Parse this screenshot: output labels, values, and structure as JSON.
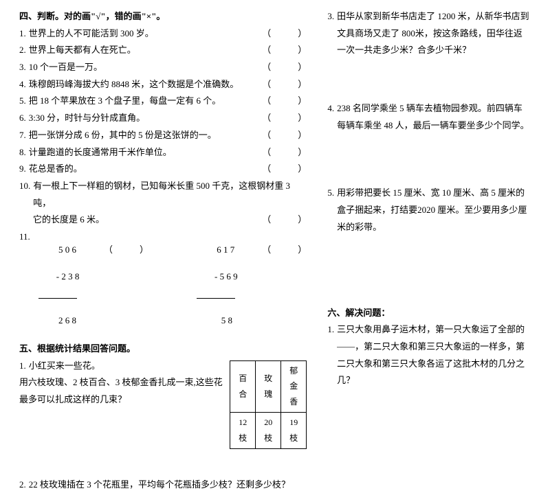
{
  "left": {
    "sec4_title": "四、判断。对的画\"√\"，错的画\"×\"。",
    "bracket": "（　　　）",
    "items": [
      {
        "n": "1.",
        "t": "世界上的人不可能活到 300 岁。"
      },
      {
        "n": "2.",
        "t": "世界上每天都有人在死亡。"
      },
      {
        "n": "3.",
        "t": "10 个一百是一万。"
      },
      {
        "n": "4.",
        "t": "珠穆朗玛峰海拔大约 8848 米，这个数据是个准确数。"
      },
      {
        "n": "5.",
        "t": "把 18 个苹果放在 3 个盘子里，每盘一定有 6 个。"
      },
      {
        "n": "6.",
        "t": "3:30 分，时针与分针成直角。"
      },
      {
        "n": "7.",
        "t": "把一张饼分成 6 份，其中的 5 份是这张饼的一。"
      },
      {
        "n": "8.",
        "t": "计量跑道的长度通常用千米作单位。"
      },
      {
        "n": "9.",
        "t": "花总是香的。"
      }
    ],
    "item10_n": "10.",
    "item10_t": "有一根上下一样粗的钢材，已知每米长重 500 千克，这根钢材重 3 吨，",
    "item10_cont": "它的长度是 6 米。",
    "item11_n": "11.",
    "calc_left": {
      "l1": " 5 0 6",
      "l2": "- 2 3 8",
      "l3": " 2 6 8"
    },
    "calc_right": {
      "l1": " 6 1 7",
      "l2": "- 5 6 9",
      "l3": "   5 8"
    },
    "sec5_title": "五、根据统计结果回答问题。",
    "q5_1_n": "1.",
    "q5_1_t": "小红买来一些花。",
    "q5_1_body": "用六枝玫瑰、2 枝百合、3 枝郁金香扎成一束,这些花最多可以扎成这样的几束？",
    "table": {
      "h1": "百合",
      "h2": "玫瑰",
      "h3": "郁金香",
      "r1": "12 枝",
      "r2": "20 枝",
      "r3": "19 枝"
    },
    "q5_2_n": "2.",
    "q5_2_t": "22 枝玫瑰插在 3 个花瓶里，平均每个花瓶插多少枝？还剩多少枝？"
  },
  "right": {
    "q3_n": "3.",
    "q3_t": "田华从家到新华书店走了 1200 米，从新华书店到文具商场又走了 800米，按这条路线，田华往返一次一共走多少米？合多少千米？",
    "q4_n": "4.",
    "q4_t": "238 名同学乘坐 5 辆车去植物园参观。前四辆车每辆车乘坐 48 人，最后一辆车要坐多少个同学。",
    "q5_n": "5.",
    "q5_t": "用彩带把要长 15 厘米、宽 10 厘米、高 5 厘米的盒子捆起来，打结要2020 厘米。至少要用多少厘米的彩带。",
    "sec6_title": "六、解决问题：",
    "q6_1_n": "1.",
    "q6_1_t": "三只大象用鼻子运木材，第一只大象运了全部的——，第二只大象和第三只大象运的一样多，第二只大象和第三只大象各运了这批木材的几分之几？"
  }
}
